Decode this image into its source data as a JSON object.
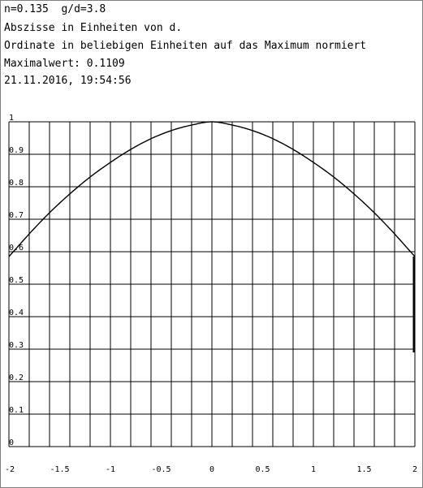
{
  "header": {
    "lines": [
      "n=0.135  g/d=3.8",
      "Abszisse in Einheiten von d.",
      "Ordinate in beliebigen Einheiten auf das Maximum normiert",
      "Maximalwert: 0.1109",
      "21.11.2016, 19:54:56"
    ]
  },
  "chart_data": {
    "type": "line",
    "xlim": [
      -2,
      2
    ],
    "ylim": [
      0,
      1
    ],
    "grid": true,
    "x_tick_labels": [
      "-2",
      "-1.5",
      "-1",
      "-0.5",
      "0",
      "0.5",
      "1",
      "1.5",
      "2"
    ],
    "y_tick_labels": [
      "0",
      "0.1",
      "0.2",
      "0.3",
      "0.4",
      "0.5",
      "0.6",
      "0.7",
      "0.8",
      "0.9",
      "1"
    ],
    "series": [
      {
        "x": [
          -2.0,
          -1.8,
          -1.6,
          -1.4,
          -1.2,
          -1.0,
          -0.8,
          -0.6,
          -0.4,
          -0.2,
          0.0,
          0.2,
          0.4,
          0.6,
          0.8,
          1.0,
          1.2,
          1.4,
          1.6,
          1.8,
          2.0
        ],
        "y": [
          0.585,
          0.655,
          0.72,
          0.778,
          0.83,
          0.875,
          0.915,
          0.948,
          0.973,
          0.99,
          1.0,
          0.99,
          0.973,
          0.948,
          0.915,
          0.875,
          0.83,
          0.778,
          0.72,
          0.655,
          0.585
        ]
      }
    ],
    "edge_segment": {
      "x": 2.0,
      "y_from": 0.585,
      "y_to": 0.29
    }
  },
  "colors": {
    "grid": "#000000",
    "line": "#000000",
    "frame": "#808080"
  }
}
